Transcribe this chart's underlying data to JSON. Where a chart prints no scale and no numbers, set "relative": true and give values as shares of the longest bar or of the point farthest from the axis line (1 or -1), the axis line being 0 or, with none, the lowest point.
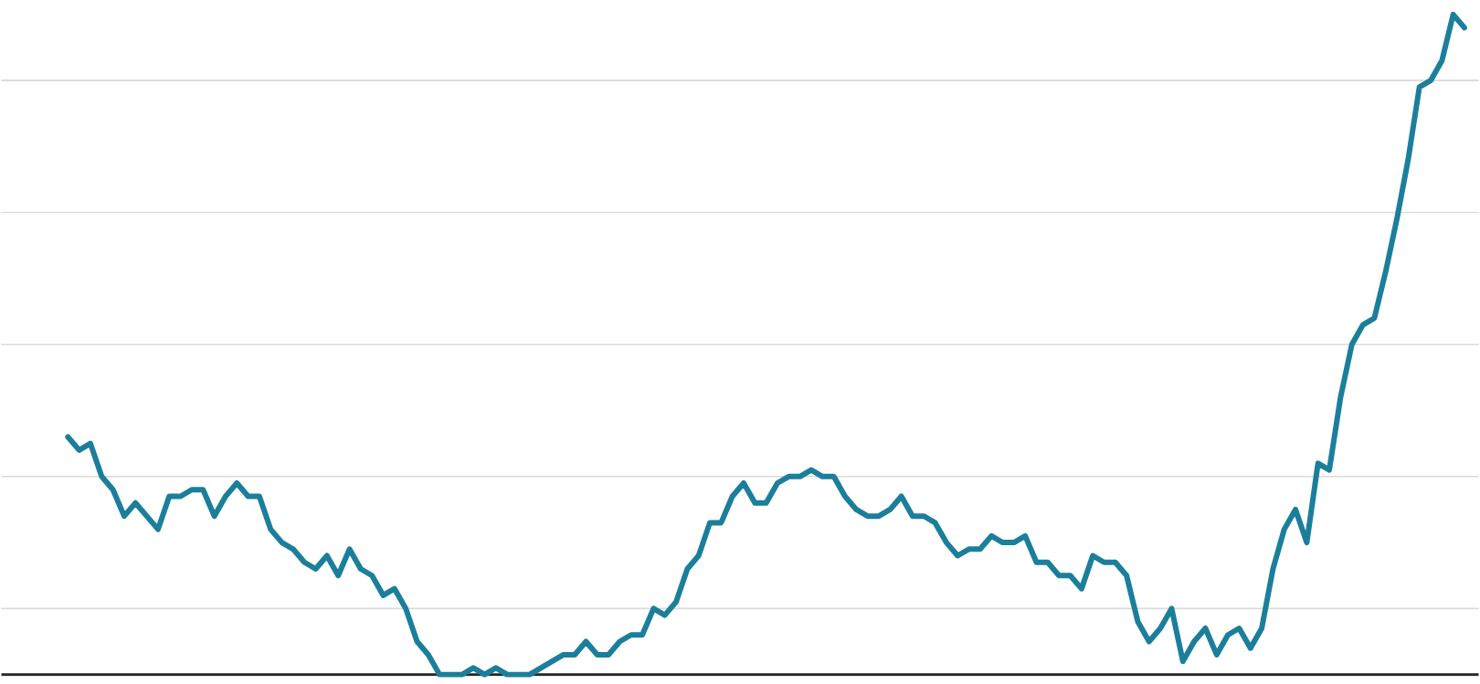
{
  "chart_data": {
    "type": "line",
    "relative": true,
    "grid": "y",
    "color": "#1b7f9b",
    "categories": [
      null,
      null,
      null,
      null,
      null,
      null,
      null,
      null,
      null,
      null,
      null,
      null,
      null,
      null,
      null,
      null,
      null,
      null,
      null,
      null,
      null,
      null,
      null,
      null,
      null,
      null,
      null,
      null,
      null,
      null,
      null,
      null,
      null,
      null,
      null,
      null,
      null,
      null,
      null,
      null,
      null,
      null,
      null,
      null,
      null,
      null,
      null,
      null,
      null,
      null,
      null,
      null,
      null,
      null,
      null,
      null,
      null,
      null,
      null,
      null,
      null,
      null,
      null,
      null,
      null,
      null,
      null,
      null,
      null,
      null,
      null,
      null,
      null,
      null,
      null,
      null,
      null,
      null,
      null,
      null,
      null,
      null,
      null,
      null,
      null,
      null,
      null,
      null,
      null,
      null,
      null,
      null,
      null,
      null,
      null,
      null,
      null,
      null,
      null,
      null,
      null,
      null,
      null,
      null,
      null,
      null,
      null,
      null,
      null,
      null,
      null,
      null,
      null,
      null,
      null,
      null,
      null,
      null,
      null,
      null,
      null,
      null,
      null,
      null,
      null
    ],
    "values": [
      0.36,
      0.34,
      0.35,
      0.3,
      0.28,
      0.24,
      0.26,
      0.24,
      0.22,
      0.27,
      0.27,
      0.28,
      0.28,
      0.24,
      0.27,
      0.29,
      0.27,
      0.27,
      0.22,
      0.2,
      0.19,
      0.17,
      0.16,
      0.18,
      0.15,
      0.19,
      0.16,
      0.15,
      0.12,
      0.13,
      0.1,
      0.05,
      0.03,
      0.0,
      0,
      0,
      0.01,
      0,
      0.01,
      0,
      0,
      0,
      0.01,
      0.02,
      0.03,
      0.03,
      0.05,
      0.03,
      0.03,
      0.05,
      0.06,
      0.06,
      0.1,
      0.09,
      0.11,
      0.16,
      0.18,
      0.23,
      0.23,
      0.27,
      0.29,
      0.26,
      0.26,
      0.29,
      0.3,
      0.3,
      0.31,
      0.3,
      0.3,
      0.27,
      0.25,
      0.24,
      0.24,
      0.25,
      0.27,
      0.24,
      0.24,
      0.23,
      0.2,
      0.18,
      0.19,
      0.19,
      0.21,
      0.2,
      0.2,
      0.21,
      0.17,
      0.17,
      0.15,
      0.15,
      0.13,
      0.18,
      0.17,
      0.17,
      0.15,
      0.08,
      0.05,
      0.07,
      0.1,
      0.02,
      0.05,
      0.07,
      0.03,
      0.06,
      0.07,
      0.04,
      0.07,
      0.16,
      0.22,
      0.25,
      0.2,
      0.32,
      0.31,
      0.42,
      0.5,
      0.53,
      0.54,
      0.61,
      0.69,
      0.78,
      0.89,
      0.9,
      0.93,
      1,
      0.98
    ]
  }
}
